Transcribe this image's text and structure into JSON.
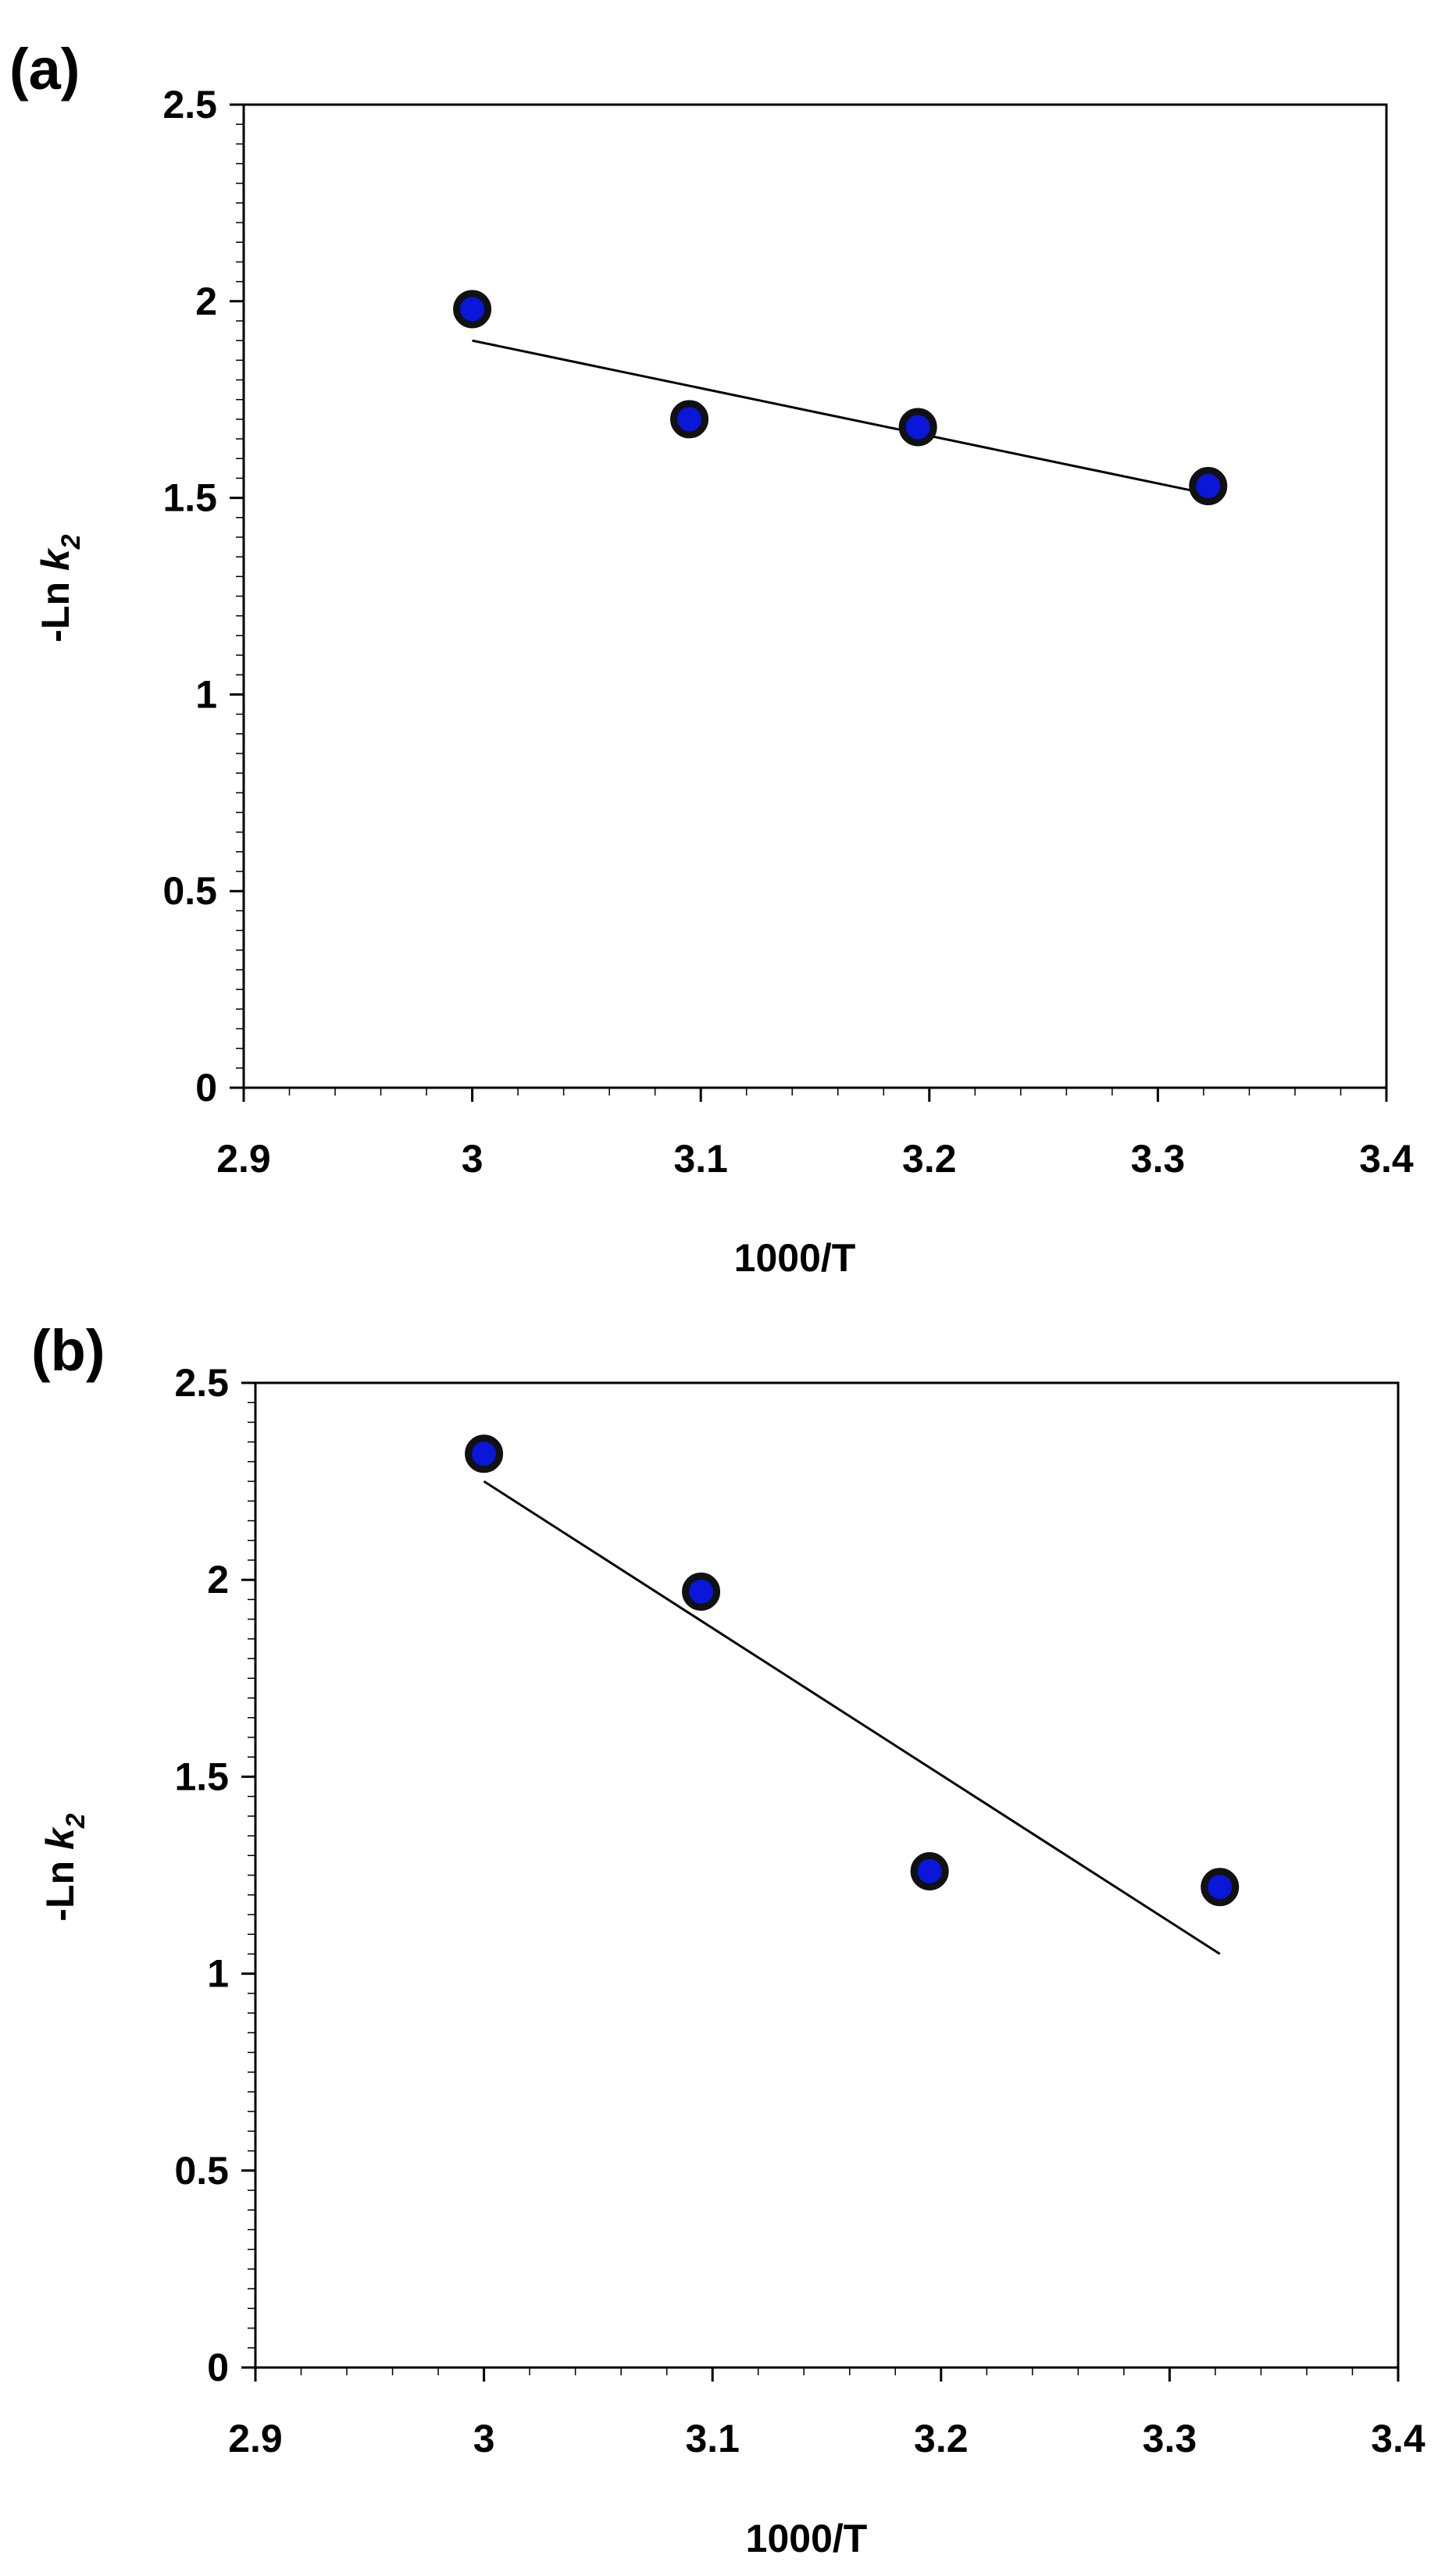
{
  "chart_data": [
    {
      "type": "scatter",
      "panel_label": "(a)",
      "xlabel": "1000/T",
      "ylabel_main": "-Ln ",
      "ylabel_var": "k",
      "ylabel_sub": "2",
      "xlim": [
        2.9,
        3.4
      ],
      "ylim": [
        0,
        2.5
      ],
      "x_ticks": [
        "2.9",
        "3",
        "3.1",
        "3.2",
        "3.3",
        "3.4"
      ],
      "y_ticks": [
        "0",
        "0.5",
        "1",
        "1.5",
        "2",
        "2.5"
      ],
      "grid": false,
      "legend": "none",
      "marker_color": "#0a16d8",
      "points": [
        {
          "x": 3.0,
          "y": 1.98
        },
        {
          "x": 3.095,
          "y": 1.7
        },
        {
          "x": 3.195,
          "y": 1.68
        },
        {
          "x": 3.322,
          "y": 1.53
        }
      ],
      "trendline": {
        "x": [
          3.0,
          3.322
        ],
        "y": [
          1.9,
          1.51
        ]
      }
    },
    {
      "type": "scatter",
      "panel_label": "(b)",
      "xlabel": "1000/T",
      "ylabel_main": "-Ln ",
      "ylabel_var": "k",
      "ylabel_sub": "2",
      "xlim": [
        2.9,
        3.4
      ],
      "ylim": [
        0,
        2.5
      ],
      "x_ticks": [
        "2.9",
        "3",
        "3.1",
        "3.2",
        "3.3",
        "3.4"
      ],
      "y_ticks": [
        "0",
        "0.5",
        "1",
        "1.5",
        "2",
        "2.5"
      ],
      "grid": false,
      "legend": "none",
      "marker_color": "#0a16d8",
      "points": [
        {
          "x": 3.0,
          "y": 2.32
        },
        {
          "x": 3.095,
          "y": 1.97
        },
        {
          "x": 3.195,
          "y": 1.26
        },
        {
          "x": 3.322,
          "y": 1.22
        }
      ],
      "trendline": {
        "x": [
          3.0,
          3.322
        ],
        "y": [
          2.25,
          1.05
        ]
      }
    }
  ]
}
